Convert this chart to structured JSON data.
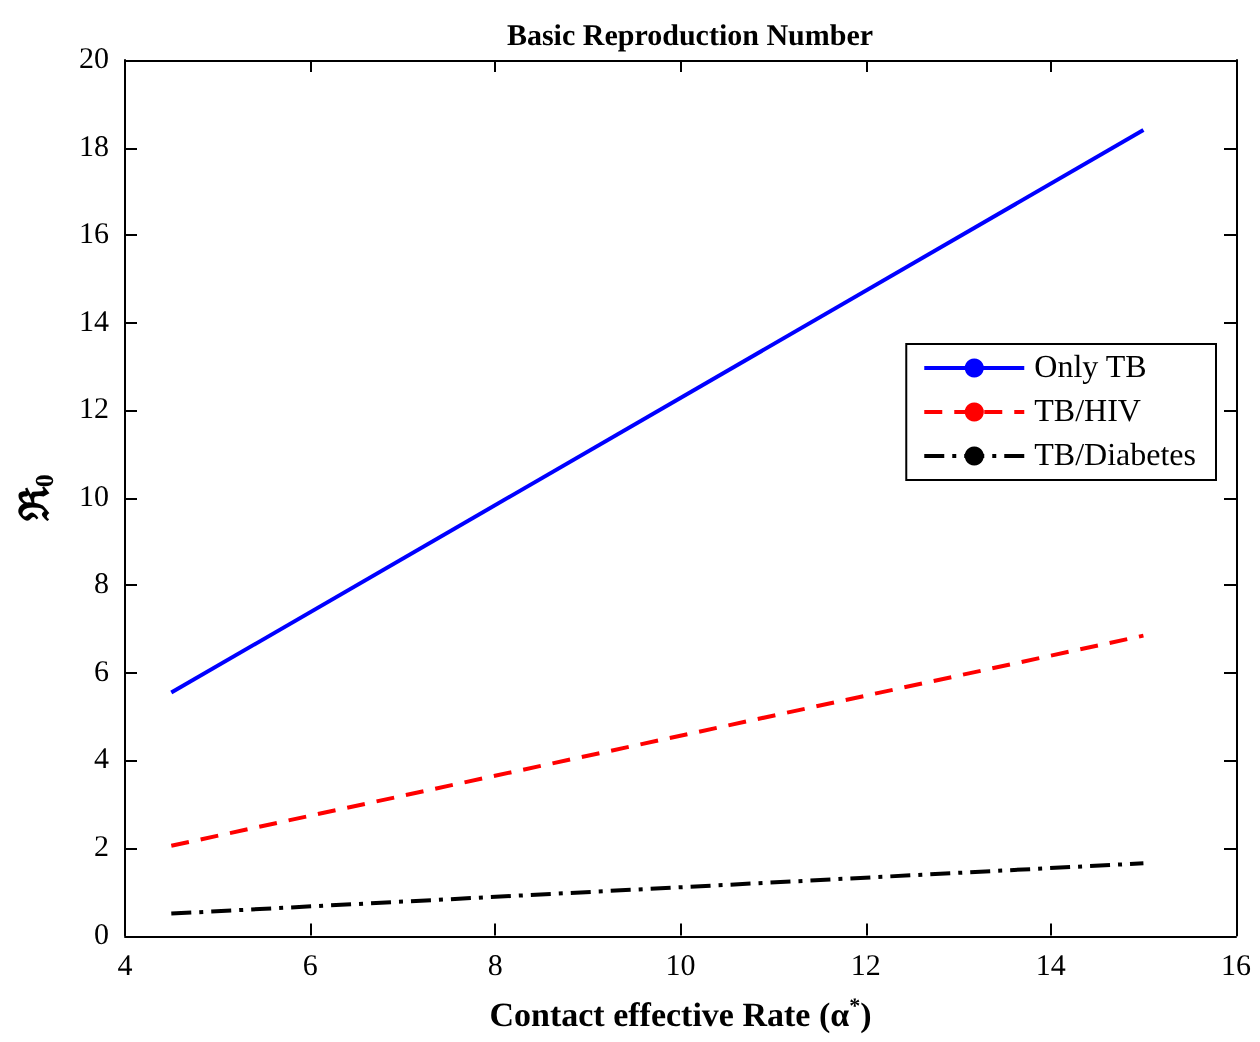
{
  "chart_data": {
    "type": "line",
    "title": "Basic Reproduction Number",
    "xlabel": "Contact effective Rate (α$^{*}$)",
    "ylabel": "ℜ$_{0}$",
    "x": [
      4.5,
      15
    ],
    "series": [
      {
        "name": "Only TB",
        "color": "#0000ff",
        "values": [
          5.55,
          18.4
        ],
        "line_style": "solid"
      },
      {
        "name": "TB/HIV",
        "color": "#ff0000",
        "values": [
          2.05,
          6.85
        ],
        "line_style": "dashed"
      },
      {
        "name": "TB/Diabetes",
        "color": "#000000",
        "values": [
          0.5,
          1.65
        ],
        "line_style": "dotted"
      }
    ],
    "xlim": [
      4,
      16
    ],
    "xticks": [
      4,
      6,
      8,
      10,
      12,
      14,
      16
    ],
    "ylim": [
      0,
      20
    ],
    "yticks": [
      0,
      2,
      4,
      6,
      8,
      10,
      12,
      14,
      16,
      18,
      20
    ],
    "grid": false,
    "legend": "right",
    "marker": "none"
  }
}
